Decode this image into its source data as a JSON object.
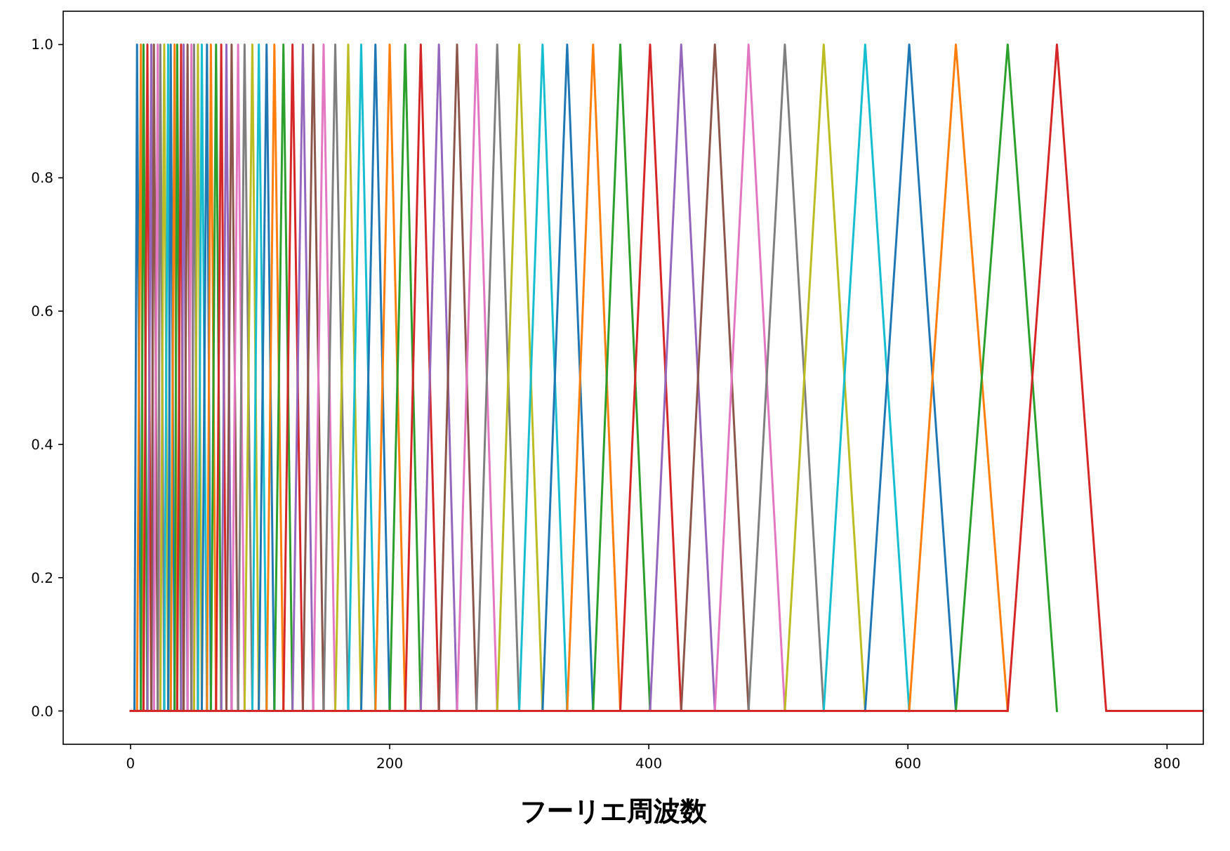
{
  "chart_data": {
    "type": "line",
    "xlabel": "フーリエ周波数",
    "xlim": [
      -52,
      828
    ],
    "ylim": [
      -0.05,
      1.05
    ],
    "xticks": [
      0,
      200,
      400,
      600,
      800
    ],
    "yticks": [
      {
        "value": 0,
        "label": "0.0"
      },
      {
        "value": 0.2,
        "label": "0.2"
      },
      {
        "value": 0.4,
        "label": "0.4"
      },
      {
        "value": 0.6,
        "label": "0.6"
      },
      {
        "value": 0.8,
        "label": "0.8"
      },
      {
        "value": 1,
        "label": "1.0"
      }
    ],
    "series": [
      {
        "color": "#1f77b4",
        "x": [
          3,
          5,
          8
        ],
        "values": [
          0,
          1,
          0
        ]
      },
      {
        "color": "#ff7f0e",
        "x": [
          5,
          8,
          10
        ],
        "values": [
          0,
          1,
          0
        ]
      },
      {
        "color": "#2ca02c",
        "x": [
          8,
          10,
          13
        ],
        "values": [
          0,
          1,
          0
        ]
      },
      {
        "color": "#d62728",
        "x": [
          10,
          13,
          16
        ],
        "values": [
          0,
          1,
          0
        ]
      },
      {
        "color": "#9467bd",
        "x": [
          13,
          16,
          18
        ],
        "values": [
          0,
          1,
          0
        ]
      },
      {
        "color": "#8c564b",
        "x": [
          16,
          18,
          21
        ],
        "values": [
          0,
          1,
          0
        ]
      },
      {
        "color": "#e377c2",
        "x": [
          18,
          21,
          23
        ],
        "values": [
          0,
          1,
          0
        ]
      },
      {
        "color": "#7f7f7f",
        "x": [
          21,
          23,
          26
        ],
        "values": [
          0,
          1,
          0
        ]
      },
      {
        "color": "#bcbd22",
        "x": [
          23,
          26,
          29
        ],
        "values": [
          0,
          1,
          0
        ]
      },
      {
        "color": "#17becf",
        "x": [
          26,
          29,
          31
        ],
        "values": [
          0,
          1,
          0
        ]
      },
      {
        "color": "#1f77b4",
        "x": [
          29,
          31,
          34
        ],
        "values": [
          0,
          1,
          0
        ]
      },
      {
        "color": "#ff7f0e",
        "x": [
          31,
          34,
          36
        ],
        "values": [
          0,
          1,
          0
        ]
      },
      {
        "color": "#2ca02c",
        "x": [
          34,
          36,
          39
        ],
        "values": [
          0,
          1,
          0
        ]
      },
      {
        "color": "#d62728",
        "x": [
          36,
          39,
          41
        ],
        "values": [
          0,
          1,
          0
        ]
      },
      {
        "color": "#9467bd",
        "x": [
          39,
          41,
          44
        ],
        "values": [
          0,
          1,
          0
        ]
      },
      {
        "color": "#8c564b",
        "x": [
          41,
          44,
          47
        ],
        "values": [
          0,
          1,
          0
        ]
      },
      {
        "color": "#e377c2",
        "x": [
          44,
          47,
          49
        ],
        "values": [
          0,
          1,
          0
        ]
      },
      {
        "color": "#7f7f7f",
        "x": [
          47,
          49,
          52
        ],
        "values": [
          0,
          1,
          0
        ]
      },
      {
        "color": "#bcbd22",
        "x": [
          49,
          52,
          55
        ],
        "values": [
          0,
          1,
          0
        ]
      },
      {
        "color": "#17becf",
        "x": [
          52,
          55,
          59
        ],
        "values": [
          0,
          1,
          0
        ]
      },
      {
        "color": "#1f77b4",
        "x": [
          55,
          59,
          62
        ],
        "values": [
          0,
          1,
          0
        ]
      },
      {
        "color": "#ff7f0e",
        "x": [
          59,
          62,
          66
        ],
        "values": [
          0,
          1,
          0
        ]
      },
      {
        "color": "#2ca02c",
        "x": [
          62,
          66,
          70
        ],
        "values": [
          0,
          1,
          0
        ]
      },
      {
        "color": "#d62728",
        "x": [
          66,
          70,
          74
        ],
        "values": [
          0,
          1,
          0
        ]
      },
      {
        "color": "#9467bd",
        "x": [
          70,
          74,
          78
        ],
        "values": [
          0,
          1,
          0
        ]
      },
      {
        "color": "#8c564b",
        "x": [
          74,
          78,
          83
        ],
        "values": [
          0,
          1,
          0
        ]
      },
      {
        "color": "#e377c2",
        "x": [
          78,
          83,
          88
        ],
        "values": [
          0,
          1,
          0
        ]
      },
      {
        "color": "#7f7f7f",
        "x": [
          83,
          88,
          94
        ],
        "values": [
          0,
          1,
          0
        ]
      },
      {
        "color": "#bcbd22",
        "x": [
          88,
          94,
          99
        ],
        "values": [
          0,
          1,
          0
        ]
      },
      {
        "color": "#17becf",
        "x": [
          94,
          99,
          105
        ],
        "values": [
          0,
          1,
          0
        ]
      },
      {
        "color": "#1f77b4",
        "x": [
          99,
          105,
          111
        ],
        "values": [
          0,
          1,
          0
        ]
      },
      {
        "color": "#ff7f0e",
        "x": [
          105,
          111,
          118
        ],
        "values": [
          0,
          1,
          0
        ]
      },
      {
        "color": "#2ca02c",
        "x": [
          111,
          118,
          125
        ],
        "values": [
          0,
          1,
          0
        ]
      },
      {
        "color": "#d62728",
        "x": [
          118,
          125,
          133
        ],
        "values": [
          0,
          1,
          0
        ]
      },
      {
        "color": "#9467bd",
        "x": [
          125,
          133,
          141
        ],
        "values": [
          0,
          1,
          0
        ]
      },
      {
        "color": "#8c564b",
        "x": [
          133,
          141,
          149
        ],
        "values": [
          0,
          1,
          0
        ]
      },
      {
        "color": "#e377c2",
        "x": [
          141,
          149,
          158
        ],
        "values": [
          0,
          1,
          0
        ]
      },
      {
        "color": "#7f7f7f",
        "x": [
          149,
          158,
          168
        ],
        "values": [
          0,
          1,
          0
        ]
      },
      {
        "color": "#bcbd22",
        "x": [
          158,
          168,
          178
        ],
        "values": [
          0,
          1,
          0
        ]
      },
      {
        "color": "#17becf",
        "x": [
          168,
          178,
          189
        ],
        "values": [
          0,
          1,
          0
        ]
      },
      {
        "color": "#1f77b4",
        "x": [
          178,
          189,
          200
        ],
        "values": [
          0,
          1,
          0
        ]
      },
      {
        "color": "#ff7f0e",
        "x": [
          189,
          200,
          212
        ],
        "values": [
          0,
          1,
          0
        ]
      },
      {
        "color": "#2ca02c",
        "x": [
          200,
          212,
          224
        ],
        "values": [
          0,
          1,
          0
        ]
      },
      {
        "color": "#d62728",
        "x": [
          212,
          224,
          238
        ],
        "values": [
          0,
          1,
          0
        ]
      },
      {
        "color": "#9467bd",
        "x": [
          224,
          238,
          252
        ],
        "values": [
          0,
          1,
          0
        ]
      },
      {
        "color": "#8c564b",
        "x": [
          238,
          252,
          267
        ],
        "values": [
          0,
          1,
          0
        ]
      },
      {
        "color": "#e377c2",
        "x": [
          252,
          267,
          283
        ],
        "values": [
          0,
          1,
          0
        ]
      },
      {
        "color": "#7f7f7f",
        "x": [
          267,
          283,
          300
        ],
        "values": [
          0,
          1,
          0
        ]
      },
      {
        "color": "#bcbd22",
        "x": [
          283,
          300,
          318
        ],
        "values": [
          0,
          1,
          0
        ]
      },
      {
        "color": "#17becf",
        "x": [
          300,
          318,
          337
        ],
        "values": [
          0,
          1,
          0
        ]
      },
      {
        "color": "#1f77b4",
        "x": [
          318,
          337,
          357
        ],
        "values": [
          0,
          1,
          0
        ]
      },
      {
        "color": "#ff7f0e",
        "x": [
          337,
          357,
          378
        ],
        "values": [
          0,
          1,
          0
        ]
      },
      {
        "color": "#2ca02c",
        "x": [
          357,
          378,
          401
        ],
        "values": [
          0,
          1,
          0
        ]
      },
      {
        "color": "#d62728",
        "x": [
          378,
          401,
          425
        ],
        "values": [
          0,
          1,
          0
        ]
      },
      {
        "color": "#9467bd",
        "x": [
          401,
          425,
          451
        ],
        "values": [
          0,
          1,
          0
        ]
      },
      {
        "color": "#8c564b",
        "x": [
          425,
          451,
          477
        ],
        "values": [
          0,
          1,
          0
        ]
      },
      {
        "color": "#e377c2",
        "x": [
          451,
          477,
          505
        ],
        "values": [
          0,
          1,
          0
        ]
      },
      {
        "color": "#7f7f7f",
        "x": [
          477,
          505,
          535
        ],
        "values": [
          0,
          1,
          0
        ]
      },
      {
        "color": "#bcbd22",
        "x": [
          505,
          535,
          567
        ],
        "values": [
          0,
          1,
          0
        ]
      },
      {
        "color": "#17becf",
        "x": [
          535,
          567,
          601
        ],
        "values": [
          0,
          1,
          0
        ]
      },
      {
        "color": "#1f77b4",
        "x": [
          567,
          601,
          637
        ],
        "values": [
          0,
          1,
          0
        ]
      },
      {
        "color": "#ff7f0e",
        "x": [
          601,
          637,
          677
        ],
        "values": [
          0,
          1,
          0
        ]
      },
      {
        "color": "#2ca02c",
        "x": [
          637,
          677,
          715
        ],
        "values": [
          0,
          1,
          0
        ]
      },
      {
        "color": "#d62728",
        "x": [
          0,
          677,
          715,
          753,
          828
        ],
        "values": [
          0,
          0,
          1,
          0,
          0
        ]
      }
    ]
  }
}
